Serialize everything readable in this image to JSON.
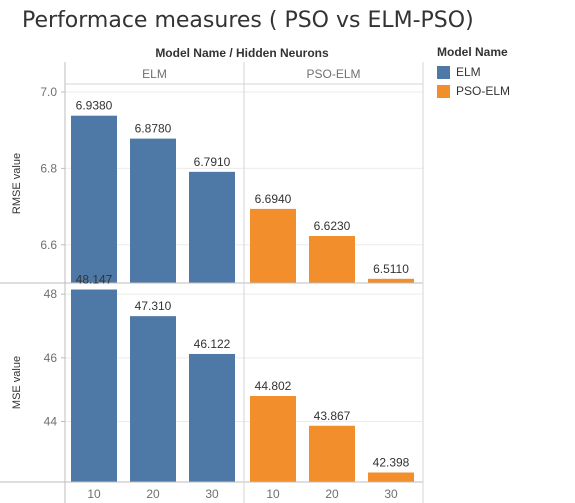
{
  "title": "Performace measures ( PSO vs ELM-PSO)",
  "header": {
    "label": "Model Name  /  Hidden Neurons"
  },
  "legend": {
    "title": "Model Name",
    "items": [
      {
        "label": "ELM",
        "color": "#4e79a7"
      },
      {
        "label": "PSO-ELM",
        "color": "#f28e2b"
      }
    ]
  },
  "chart_data": {
    "type": "bar",
    "groups": [
      "ELM",
      "PSO-ELM"
    ],
    "categories": [
      "10",
      "20",
      "30"
    ],
    "colors": {
      "ELM": "#4e79a7",
      "PSO-ELM": "#f28e2b"
    },
    "panels": [
      {
        "ylabel": "RMSE value",
        "ylim": [
          6.5,
          7.0
        ],
        "ticks": [
          6.6,
          6.8,
          7.0
        ],
        "tick_labels": [
          "6.6",
          "6.8",
          "7.0"
        ],
        "series": [
          {
            "group": "ELM",
            "values": [
              6.938,
              6.878,
              6.791
            ],
            "labels": [
              "6.9380",
              "6.8780",
              "6.7910"
            ]
          },
          {
            "group": "PSO-ELM",
            "values": [
              6.694,
              6.623,
              6.511
            ],
            "labels": [
              "6.6940",
              "6.6230",
              "6.5110"
            ]
          }
        ]
      },
      {
        "ylabel": "MSE value",
        "ylim": [
          42.1,
          48.1
        ],
        "ticks": [
          44,
          46,
          48
        ],
        "tick_labels": [
          "44",
          "46",
          "48"
        ],
        "series": [
          {
            "group": "ELM",
            "values": [
              48.147,
              47.31,
              46.122
            ],
            "labels": [
              "48.147",
              "47.310",
              "46.122"
            ]
          },
          {
            "group": "PSO-ELM",
            "values": [
              44.802,
              43.867,
              42.398
            ],
            "labels": [
              "44.802",
              "43.867",
              "42.398"
            ]
          }
        ]
      }
    ],
    "grid": true,
    "legend_position": "right"
  }
}
